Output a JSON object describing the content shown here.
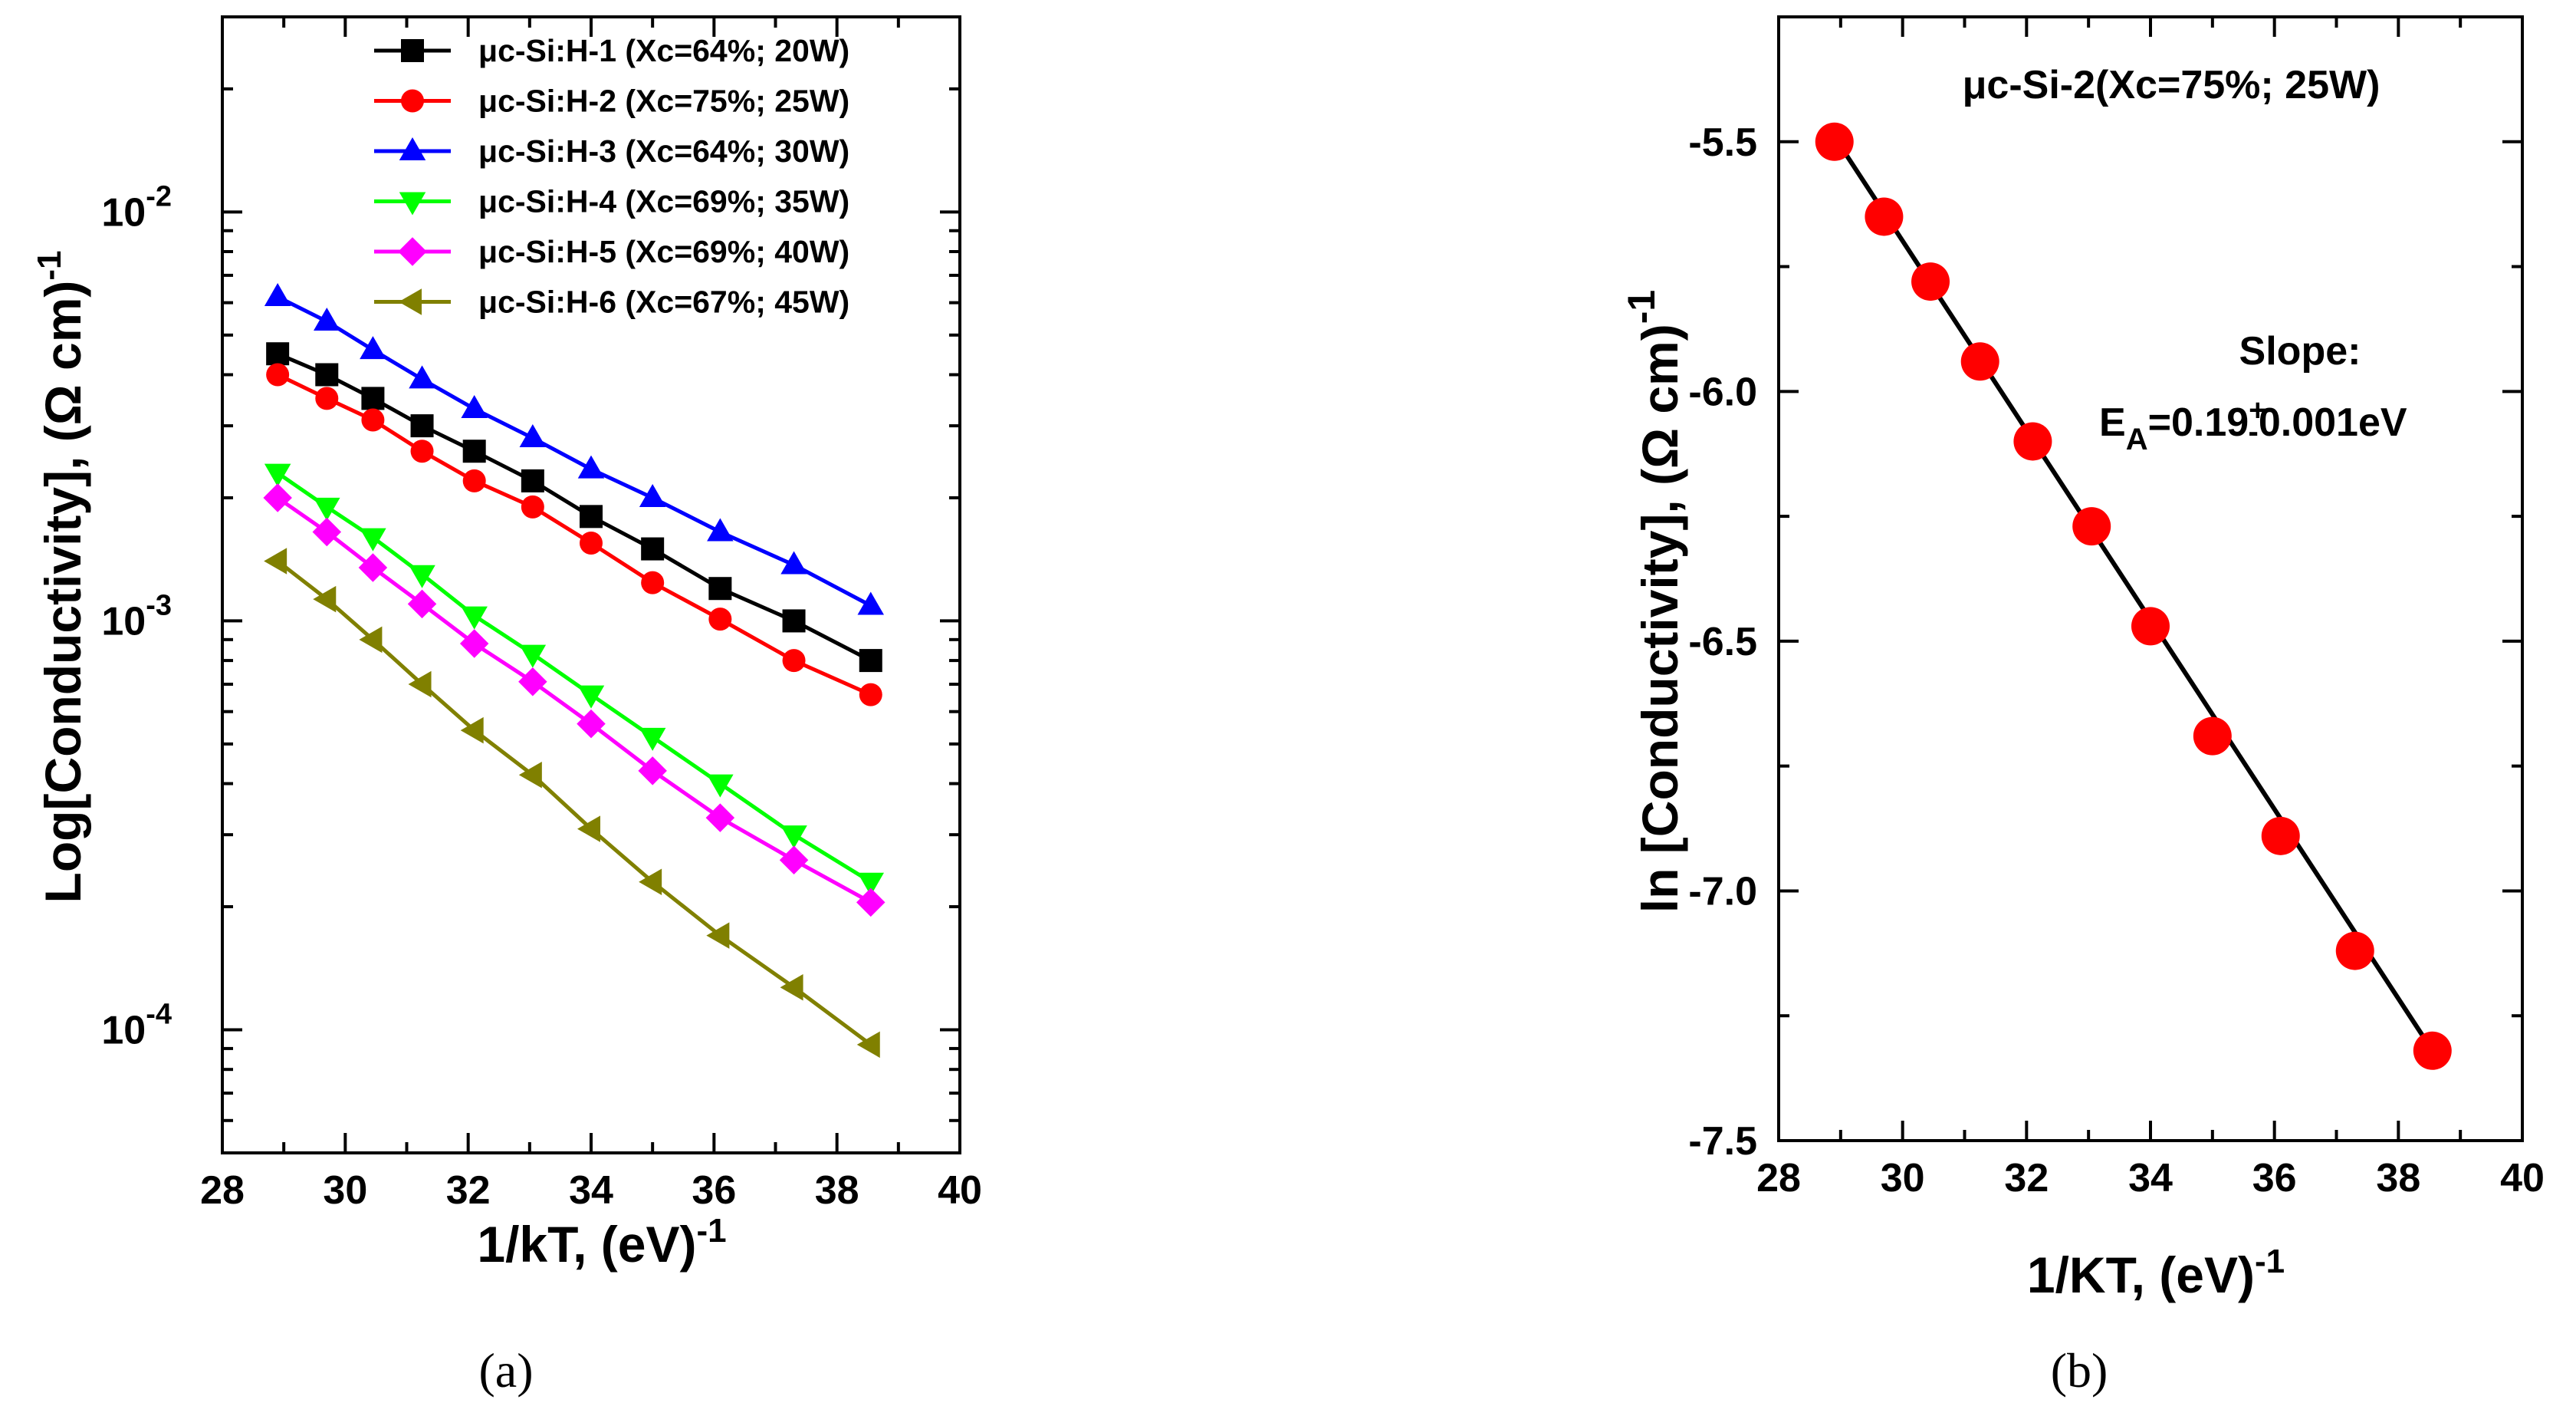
{
  "chart_data": [
    {
      "type": "line",
      "yscale": "log",
      "xlabel_main": "1/kT, (eV)",
      "xlabel_sup": "-1",
      "ylabel_main": "Log[Conductivity], (Ω cm)",
      "ylabel_sup": "-1",
      "xlim": [
        28,
        40
      ],
      "ylim": [
        5e-05,
        0.03
      ],
      "xticks": [
        {
          "v": 28,
          "label": "28"
        },
        {
          "v": 30,
          "label": "30"
        },
        {
          "v": 32,
          "label": "32"
        },
        {
          "v": 34,
          "label": "34"
        },
        {
          "v": 36,
          "label": "36"
        },
        {
          "v": 38,
          "label": "38"
        },
        {
          "v": 40,
          "label": "40"
        }
      ],
      "yticks": [
        {
          "v": 0.01,
          "base": "10",
          "exp": "-2"
        },
        {
          "v": 0.001,
          "base": "10",
          "exp": "-3"
        },
        {
          "v": 0.0001,
          "base": "10",
          "exp": "-4"
        }
      ],
      "x": [
        28.9,
        29.7,
        30.45,
        31.25,
        32.1,
        33.05,
        34.0,
        35.0,
        36.1,
        37.3,
        38.55
      ],
      "series": [
        {
          "name": "μc-Si:H-1 (Xc=64%; 20W)",
          "color": "#000000",
          "marker": "square",
          "values": [
            0.0045,
            0.004,
            0.0035,
            0.003,
            0.0026,
            0.0022,
            0.0018,
            0.0015,
            0.0012,
            0.001,
            0.0008
          ]
        },
        {
          "name": "μc-Si:H-2 (Xc=75%; 25W)",
          "color": "#ff0000",
          "marker": "circle",
          "values": [
            0.004,
            0.0035,
            0.0031,
            0.0026,
            0.0022,
            0.0019,
            0.00155,
            0.00124,
            0.00101,
            0.0008,
            0.00066
          ]
        },
        {
          "name": "μc-Si:H-3 (Xc=64%; 30W)",
          "color": "#0000ff",
          "marker": "triangle-up",
          "values": [
            0.0062,
            0.0054,
            0.0046,
            0.0039,
            0.0033,
            0.0028,
            0.00235,
            0.002,
            0.00165,
            0.00137,
            0.00109
          ]
        },
        {
          "name": "μc-Si:H-4 (Xc=69%; 35W)",
          "color": "#00ff00",
          "marker": "triangle-down",
          "values": [
            0.0023,
            0.0019,
            0.0016,
            0.0013,
            0.00103,
            0.00083,
            0.00066,
            0.00052,
            0.0004,
            0.0003,
            0.00023
          ]
        },
        {
          "name": "μc-Si:H-5 (Xc=69%; 40W)",
          "color": "#ff00ff",
          "marker": "diamond",
          "values": [
            0.002,
            0.00165,
            0.00135,
            0.0011,
            0.00088,
            0.00071,
            0.00056,
            0.00043,
            0.00033,
            0.00026,
            0.000205
          ]
        },
        {
          "name": "μc-Si:H-6 (Xc=67%; 45W)",
          "color": "#808000",
          "marker": "triangle-left",
          "values": [
            0.0014,
            0.00113,
            0.0009,
            0.0007,
            0.00054,
            0.00042,
            0.00031,
            0.00023,
            0.00017,
            0.000127,
            9.2e-05
          ]
        }
      ],
      "legend_position": "top-right",
      "panel_label": "(a)"
    },
    {
      "type": "scatter",
      "xlabel_main": "1/KT, (eV)",
      "xlabel_sup": "-1",
      "ylabel_main": "ln [Conductivity], (Ω cm)",
      "ylabel_sup": "-1",
      "xlim": [
        28,
        40
      ],
      "ylim": [
        -7.5,
        -5.25
      ],
      "xticks": [
        {
          "v": 28,
          "label": "28"
        },
        {
          "v": 30,
          "label": "30"
        },
        {
          "v": 32,
          "label": "32"
        },
        {
          "v": 34,
          "label": "34"
        },
        {
          "v": 36,
          "label": "36"
        },
        {
          "v": 38,
          "label": "38"
        },
        {
          "v": 40,
          "label": "40"
        }
      ],
      "yticks": [
        {
          "v": -5.5,
          "label": "-5.5"
        },
        {
          "v": -6.0,
          "label": "-6.0"
        },
        {
          "v": -6.5,
          "label": "-6.5"
        },
        {
          "v": -7.0,
          "label": "-7.0"
        },
        {
          "v": -7.5,
          "label": "-7.5"
        }
      ],
      "points": {
        "x": [
          28.9,
          29.7,
          30.45,
          31.25,
          32.1,
          33.05,
          34.0,
          35.0,
          36.1,
          37.3,
          38.55
        ],
        "y": [
          -5.5,
          -5.65,
          -5.78,
          -5.94,
          -6.1,
          -6.27,
          -6.47,
          -6.69,
          -6.89,
          -7.12,
          -7.32
        ]
      },
      "fit": {
        "x": [
          28.9,
          38.55
        ],
        "y": [
          -5.49,
          -7.32
        ]
      },
      "marker_color": "#ff0000",
      "fit_color": "#000000",
      "annotation_title": "μc-Si-2(Xc=75%; 25W)",
      "slope_label": "Slope:",
      "slope_eq_start": "E",
      "slope_eq_sub": "A",
      "slope_eq_value": "=0.19",
      "slope_eq_pm_top": "+",
      "slope_eq_pm_bottom": "-",
      "slope_eq_tail": "0.001eV",
      "panel_label": "(b)"
    }
  ]
}
